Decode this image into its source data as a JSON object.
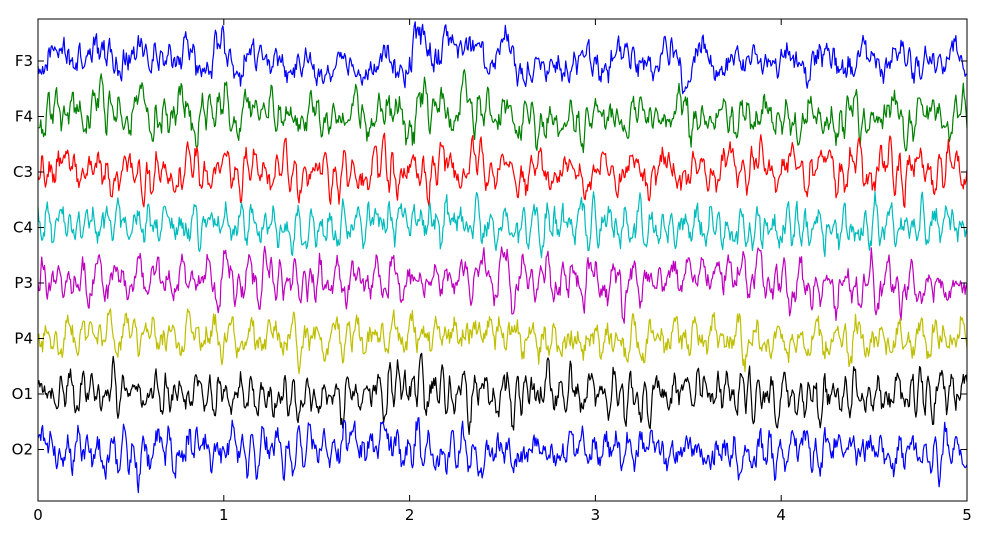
{
  "chart_data": {
    "type": "line",
    "title": "",
    "xlabel": "",
    "ylabel": "",
    "xlim": [
      0,
      5
    ],
    "x_ticks": [
      "0",
      "1",
      "2",
      "3",
      "4",
      "5"
    ],
    "grid": false,
    "legend": "none",
    "sample_interval": 0.005,
    "channels": [
      {
        "label": "F3",
        "color": "#0000ff",
        "env": [
          [
            0,
            1.0
          ],
          [
            0.4,
            1.2
          ],
          [
            0.5,
            1.0
          ],
          [
            1.8,
            0.85
          ],
          [
            2.0,
            1.3
          ],
          [
            2.6,
            1.0
          ],
          [
            5,
            1.0
          ]
        ],
        "level": [
          [
            0,
            0
          ],
          [
            0.4,
            0.3
          ],
          [
            0.5,
            0.1
          ],
          [
            0.9,
            0.2
          ],
          [
            1.3,
            0.0
          ],
          [
            1.75,
            -0.2
          ],
          [
            2.0,
            0.2
          ],
          [
            2.15,
            0.6
          ],
          [
            2.5,
            0.35
          ],
          [
            2.65,
            -0.35
          ],
          [
            3.3,
            0.0
          ],
          [
            4.0,
            -0.1
          ],
          [
            5,
            0.0
          ]
        ]
      },
      {
        "label": "F4",
        "color": "#008000",
        "env": [
          [
            0,
            1.0
          ],
          [
            0.5,
            1.2
          ],
          [
            1.8,
            0.9
          ],
          [
            2.0,
            1.3
          ],
          [
            2.6,
            1.0
          ],
          [
            5,
            1.0
          ]
        ],
        "level": [
          [
            0,
            0
          ],
          [
            0.45,
            0.5
          ],
          [
            0.55,
            0.1
          ],
          [
            1.2,
            0.2
          ],
          [
            1.5,
            -0.1
          ],
          [
            1.95,
            0.2
          ],
          [
            2.1,
            0.5
          ],
          [
            2.5,
            0.3
          ],
          [
            2.65,
            -0.3
          ],
          [
            3.3,
            0.1
          ],
          [
            4.0,
            -0.15
          ],
          [
            5,
            0.0
          ]
        ]
      },
      {
        "label": "C3",
        "color": "#ff0000",
        "env": [
          [
            0,
            1.0
          ],
          [
            1.5,
            0.85
          ],
          [
            2.0,
            1.1
          ],
          [
            2.5,
            1.0
          ],
          [
            5,
            1.0
          ]
        ],
        "level": [
          [
            0,
            0.2
          ],
          [
            0.5,
            -0.15
          ],
          [
            0.9,
            0.1
          ],
          [
            1.6,
            -0.1
          ],
          [
            2.4,
            0.25
          ],
          [
            2.7,
            -0.1
          ],
          [
            3.5,
            0.0
          ],
          [
            3.8,
            0.3
          ],
          [
            4.2,
            0.0
          ],
          [
            5,
            0.1
          ]
        ]
      },
      {
        "label": "C4",
        "color": "#00bcbc",
        "env": [
          [
            0,
            1.0
          ],
          [
            1.5,
            0.9
          ],
          [
            2.0,
            1.05
          ],
          [
            5,
            1.0
          ]
        ],
        "level": [
          [
            0,
            0.1
          ],
          [
            0.5,
            0.25
          ],
          [
            1.0,
            0.1
          ],
          [
            1.5,
            -0.15
          ],
          [
            2.0,
            0.3
          ],
          [
            2.5,
            0.05
          ],
          [
            3.0,
            0.2
          ],
          [
            3.5,
            0.1
          ],
          [
            4.0,
            -0.2
          ],
          [
            4.5,
            0.1
          ],
          [
            5,
            0.0
          ]
        ]
      },
      {
        "label": "P3",
        "color": "#bf00bf",
        "env": [
          [
            0,
            1.0
          ],
          [
            1.2,
            1.1
          ],
          [
            2.0,
            1.05
          ],
          [
            3.4,
            1.0
          ],
          [
            3.8,
            1.15
          ],
          [
            4.1,
            1.0
          ],
          [
            5,
            1.0
          ]
        ],
        "level": [
          [
            0,
            0.1
          ],
          [
            0.5,
            0.15
          ],
          [
            1.2,
            0.3
          ],
          [
            1.5,
            0.0
          ],
          [
            2.0,
            0.3
          ],
          [
            2.5,
            0.35
          ],
          [
            2.6,
            -0.05
          ],
          [
            3.2,
            0.0
          ],
          [
            3.45,
            0.4
          ],
          [
            3.8,
            0.55
          ],
          [
            3.95,
            0.0
          ],
          [
            4.05,
            -0.35
          ],
          [
            4.5,
            -0.1
          ],
          [
            5,
            -0.25
          ]
        ]
      },
      {
        "label": "P4",
        "color": "#bfbf00",
        "env": [
          [
            0,
            1.0
          ],
          [
            2.0,
            1.1
          ],
          [
            5,
            1.0
          ]
        ],
        "level": [
          [
            0,
            0.0
          ],
          [
            0.5,
            0.2
          ],
          [
            1.0,
            0.1
          ],
          [
            1.5,
            -0.1
          ],
          [
            2.0,
            0.3
          ],
          [
            2.5,
            0.2
          ],
          [
            2.7,
            -0.1
          ],
          [
            3.5,
            0.1
          ],
          [
            4.0,
            -0.2
          ],
          [
            5,
            0.0
          ]
        ]
      },
      {
        "label": "O1",
        "color": "#000000",
        "env": [
          [
            0,
            1.0
          ],
          [
            1.5,
            0.85
          ],
          [
            1.9,
            1.0
          ],
          [
            2.0,
            1.2
          ],
          [
            2.5,
            1.1
          ],
          [
            5,
            1.0
          ]
        ],
        "level": [
          [
            0,
            0.0
          ],
          [
            0.3,
            0.2
          ],
          [
            1.0,
            0.0
          ],
          [
            1.5,
            -0.2
          ],
          [
            1.95,
            0.4
          ],
          [
            2.4,
            0.1
          ],
          [
            3.0,
            0.0
          ],
          [
            4.0,
            -0.2
          ],
          [
            5,
            0.1
          ]
        ]
      },
      {
        "label": "O2",
        "color": "#0000ff",
        "env": [
          [
            0,
            1.1
          ],
          [
            0.7,
            1.2
          ],
          [
            2.0,
            1.2
          ],
          [
            2.6,
            1.0
          ],
          [
            4.0,
            1.15
          ],
          [
            5,
            1.0
          ]
        ],
        "level": [
          [
            0,
            0.1
          ],
          [
            0.5,
            -0.3
          ],
          [
            0.8,
            -0.1
          ],
          [
            1.3,
            0.0
          ],
          [
            1.95,
            0.4
          ],
          [
            2.15,
            -0.1
          ],
          [
            2.6,
            -0.2
          ],
          [
            3.2,
            0.1
          ],
          [
            3.9,
            -0.3
          ],
          [
            4.2,
            0.0
          ],
          [
            5,
            -0.1
          ]
        ]
      }
    ]
  }
}
